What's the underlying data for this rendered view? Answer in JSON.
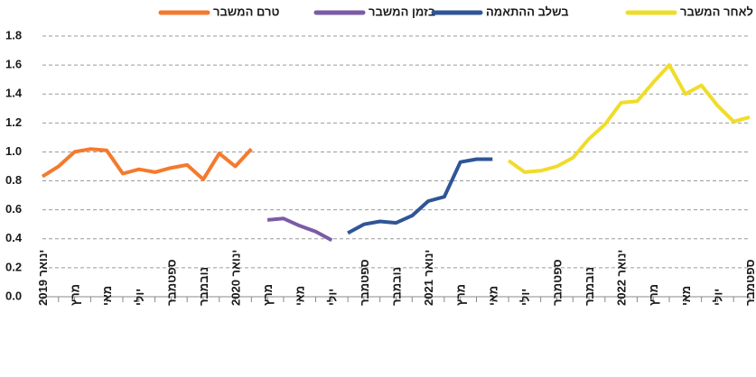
{
  "chart_data": {
    "type": "line",
    "categories": [
      "ינואר 2019",
      null,
      "מרץ",
      null,
      "מאי",
      null,
      "יולי",
      null,
      "ספטמבר",
      null,
      "נובמבר",
      null,
      "ינואר 2020",
      null,
      "מרץ",
      null,
      "מאי",
      null,
      "יולי",
      null,
      "ספטמבר",
      null,
      "נובמבר",
      null,
      "ינואר 2021",
      null,
      "מרץ",
      null,
      "מאי",
      null,
      "יולי",
      null,
      "ספטמבר",
      null,
      "נובמבר",
      null,
      "ינואר 2022",
      null,
      "מרץ",
      null,
      "מאי",
      null,
      "יולי",
      null,
      "ספטמבר"
    ],
    "series": [
      {
        "name": "טרם המשבר",
        "color": "#f47a2e",
        "values": [
          0.83,
          0.9,
          1.0,
          1.02,
          1.01,
          0.85,
          0.88,
          0.86,
          0.89,
          0.91,
          0.81,
          0.99,
          0.9,
          1.02,
          null,
          null,
          null,
          null,
          null,
          null,
          null,
          null,
          null,
          null,
          null,
          null,
          null,
          null,
          null,
          null,
          null,
          null,
          null,
          null,
          null,
          null,
          null,
          null,
          null,
          null,
          null,
          null,
          null,
          null,
          null
        ]
      },
      {
        "name": "בזמן המשבר",
        "color": "#7b5ba6",
        "values": [
          null,
          null,
          null,
          null,
          null,
          null,
          null,
          null,
          null,
          null,
          null,
          null,
          null,
          null,
          0.53,
          0.54,
          0.49,
          0.45,
          0.39,
          null,
          null,
          null,
          null,
          null,
          null,
          null,
          null,
          null,
          null,
          null,
          null,
          null,
          null,
          null,
          null,
          null,
          null,
          null,
          null,
          null,
          null,
          null,
          null,
          null,
          null
        ]
      },
      {
        "name": "בשלב ההתאמה",
        "color": "#2e5597",
        "values": [
          null,
          null,
          null,
          null,
          null,
          null,
          null,
          null,
          null,
          null,
          null,
          null,
          null,
          null,
          null,
          null,
          null,
          null,
          null,
          0.44,
          0.5,
          0.52,
          0.51,
          0.56,
          0.66,
          0.69,
          0.93,
          0.95,
          0.95,
          null,
          null,
          null,
          null,
          null,
          null,
          null,
          null,
          null,
          null,
          null,
          null,
          null,
          null,
          null,
          null
        ]
      },
      {
        "name": "לאחר המשבר",
        "color": "#f0dc2a",
        "values": [
          null,
          null,
          null,
          null,
          null,
          null,
          null,
          null,
          null,
          null,
          null,
          null,
          null,
          null,
          null,
          null,
          null,
          null,
          null,
          null,
          null,
          null,
          null,
          null,
          null,
          null,
          null,
          null,
          null,
          0.94,
          0.86,
          0.87,
          0.9,
          0.96,
          1.09,
          1.19,
          1.34,
          1.35,
          1.48,
          1.6,
          1.4,
          1.46,
          1.32,
          1.21,
          1.24
        ]
      }
    ],
    "ylim": [
      0,
      1.8
    ],
    "yticks": [
      {
        "value": 0,
        "label": "0.0"
      },
      0.2,
      0.4,
      0.6,
      0.8,
      {
        "value": 1,
        "label": "1.0"
      },
      1.2,
      1.4,
      1.6,
      1.8
    ],
    "grid": true
  }
}
